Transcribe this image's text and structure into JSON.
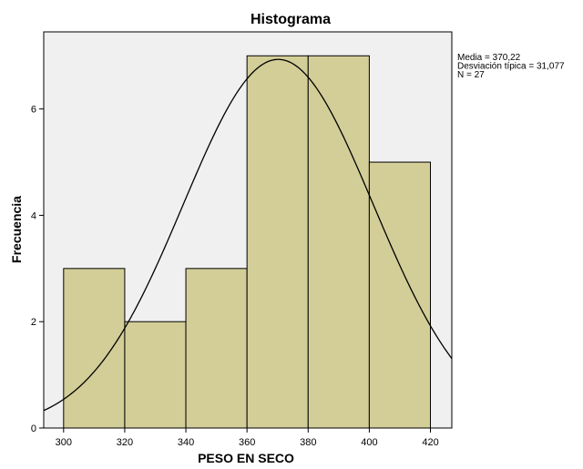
{
  "chart_data": {
    "type": "bar",
    "title": "Histograma",
    "xlabel": "PESO EN SECO",
    "ylabel": "Frecuencia",
    "bins": [
      {
        "from": 300,
        "to": 320,
        "count": 3
      },
      {
        "from": 320,
        "to": 340,
        "count": 2
      },
      {
        "from": 340,
        "to": 360,
        "count": 3
      },
      {
        "from": 360,
        "to": 380,
        "count": 7
      },
      {
        "from": 380,
        "to": 400,
        "count": 7
      },
      {
        "from": 400,
        "to": 420,
        "count": 5
      }
    ],
    "xlim": [
      293.5,
      427
    ],
    "ylim": [
      0,
      7.45
    ],
    "xticks": [
      300,
      320,
      340,
      360,
      380,
      400,
      420
    ],
    "yticks": [
      0,
      2,
      4,
      6
    ],
    "normal_curve": {
      "mean": 370.22,
      "sd": 31.077,
      "n": 27,
      "bin_width": 20
    },
    "stats": [
      "Media = 370,22",
      "Desviación típica = 31,077",
      "N = 27"
    ],
    "colors": {
      "bar_fill": "#d3cd98",
      "bar_stroke": "#000000",
      "plot_bg": "#f0f0f0",
      "curve": "#000000"
    }
  }
}
